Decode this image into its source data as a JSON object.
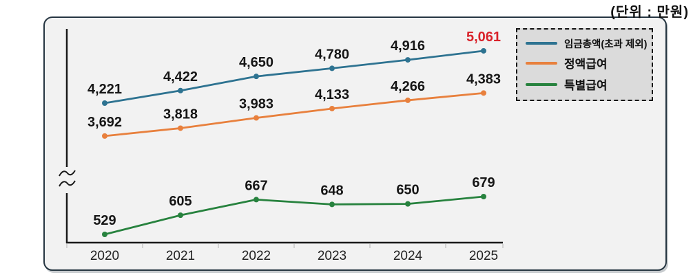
{
  "unit_label": "(단위 : 만원)",
  "chart_data": {
    "type": "line",
    "title": "",
    "unit": "만원",
    "x": [
      "2020",
      "2021",
      "2022",
      "2023",
      "2024",
      "2025"
    ],
    "series": [
      {
        "name": "임금총액(초과 제외)",
        "color": "#2e7391",
        "values": [
          4221,
          4422,
          4650,
          4780,
          4916,
          5061
        ]
      },
      {
        "name": "정액급여",
        "color": "#e8803d",
        "values": [
          3692,
          3818,
          3983,
          4133,
          4266,
          4383
        ]
      },
      {
        "name": "특별급여",
        "color": "#27823e",
        "values": [
          529,
          605,
          667,
          648,
          650,
          679
        ]
      }
    ],
    "highlight": {
      "series": 0,
      "index": 5,
      "color": "#d9222a"
    },
    "label_color": "#161616",
    "axis_color": "#1a1a1a",
    "tick_color": "#c9c9c9",
    "axis_break": true,
    "grid": false,
    "legend_position": "top-right"
  }
}
